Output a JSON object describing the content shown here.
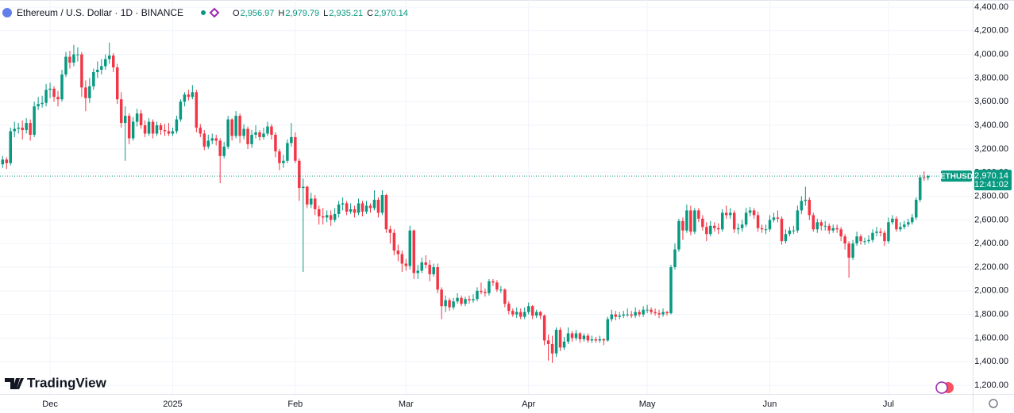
{
  "chart_data": {
    "type": "candlestick",
    "title": "Ethereum / U.S. Dollar · 1D · BINANCE",
    "legend_values": [
      {
        "key": "O",
        "value": 2956.97,
        "label": "2,956.97"
      },
      {
        "key": "H",
        "value": 2979.79,
        "label": "2,979.79"
      },
      {
        "key": "L",
        "value": 2935.21,
        "label": "2,935.21"
      },
      {
        "key": "C",
        "value": 2970.14,
        "label": "2,970.14"
      }
    ],
    "symbol_tag": "ETHUSD",
    "last_price": {
      "value": 2970.14,
      "label": "2,970.14"
    },
    "countdown": "12:41:02",
    "watermark": "TradingView",
    "up_color": "#089981",
    "down_color": "#f23645",
    "grid": true,
    "xlim": [
      0.34,
      246.3
    ],
    "ylim": [
      1127,
      4460
    ],
    "yticks": [
      {
        "value": 1200,
        "label": "1,200.00"
      },
      {
        "value": 1400,
        "label": "1,400.00"
      },
      {
        "value": 1600,
        "label": "1,600.00"
      },
      {
        "value": 1800,
        "label": "1,800.00"
      },
      {
        "value": 2000,
        "label": "2,000.00"
      },
      {
        "value": 2200,
        "label": "2,200.00"
      },
      {
        "value": 2400,
        "label": "2,400.00"
      },
      {
        "value": 2600,
        "label": "2,600.00"
      },
      {
        "value": 2800,
        "label": "2,800.00"
      },
      {
        "value": 3000,
        "label": "3,000.00"
      },
      {
        "value": 3200,
        "label": "3,200.00"
      },
      {
        "value": 3400,
        "label": "3,400.00"
      },
      {
        "value": 3600,
        "label": "3,600.00"
      },
      {
        "value": 3800,
        "label": "3,800.00"
      },
      {
        "value": 4000,
        "label": "4,000.00"
      },
      {
        "value": 4200,
        "label": "4,200.00"
      },
      {
        "value": 4400,
        "label": "4,400.00"
      }
    ],
    "categories": [
      null,
      null,
      null,
      null,
      null,
      null,
      null,
      null,
      null,
      null,
      null,
      null,
      null,
      "Dec",
      null,
      null,
      null,
      null,
      null,
      null,
      null,
      null,
      null,
      null,
      null,
      null,
      null,
      null,
      null,
      null,
      null,
      null,
      null,
      null,
      null,
      null,
      null,
      null,
      null,
      null,
      null,
      null,
      null,
      null,
      "2025",
      null,
      null,
      null,
      null,
      null,
      null,
      null,
      null,
      null,
      null,
      null,
      null,
      null,
      null,
      null,
      null,
      null,
      null,
      null,
      null,
      null,
      null,
      null,
      null,
      null,
      null,
      null,
      null,
      null,
      null,
      "Feb",
      null,
      null,
      null,
      null,
      null,
      null,
      null,
      null,
      null,
      null,
      null,
      null,
      null,
      null,
      null,
      null,
      null,
      null,
      null,
      null,
      null,
      null,
      null,
      null,
      null,
      null,
      null,
      "Mar",
      null,
      null,
      null,
      null,
      null,
      null,
      null,
      null,
      null,
      null,
      null,
      null,
      null,
      null,
      null,
      null,
      null,
      null,
      null,
      null,
      null,
      null,
      null,
      null,
      null,
      null,
      null,
      null,
      null,
      null,
      "Apr",
      null,
      null,
      null,
      null,
      null,
      null,
      null,
      null,
      null,
      null,
      null,
      null,
      null,
      null,
      null,
      null,
      null,
      null,
      null,
      null,
      null,
      null,
      null,
      null,
      null,
      null,
      null,
      null,
      null,
      "May",
      null,
      null,
      null,
      null,
      null,
      null,
      null,
      null,
      null,
      null,
      null,
      null,
      null,
      null,
      null,
      null,
      null,
      null,
      null,
      null,
      null,
      null,
      null,
      null,
      null,
      null,
      null,
      null,
      null,
      null,
      "Jun",
      null,
      null,
      null,
      null,
      null,
      null,
      null,
      null,
      null,
      null,
      null,
      null,
      null,
      null,
      null,
      null,
      null,
      null,
      null,
      null,
      null,
      null,
      null,
      null,
      null,
      null,
      null,
      null,
      null,
      "Jul",
      null,
      null,
      null,
      null,
      null,
      null,
      null,
      null,
      null,
      null
    ],
    "open": [
      3050,
      3070,
      3110,
      3080,
      3350,
      3370,
      3380,
      3360,
      3420,
      3320,
      3560,
      3580,
      3590,
      3700,
      3710,
      3640,
      3620,
      3830,
      3980,
      3930,
      4000,
      4000,
      3720,
      3630,
      3730,
      3850,
      3870,
      3900,
      3960,
      3990,
      3890,
      3620,
      3420,
      3480,
      3290,
      3430,
      3500,
      3400,
      3330,
      3430,
      3330,
      3400,
      3360,
      3350,
      3330,
      3350,
      3450,
      3600,
      3660,
      3640,
      3680,
      3380,
      3330,
      3220,
      3270,
      3290,
      3270,
      3140,
      3220,
      3450,
      3310,
      3480,
      3310,
      3370,
      3240,
      3320,
      3340,
      3300,
      3330,
      3390,
      3320,
      3180,
      3080,
      3100,
      3250,
      3300,
      3100,
      2870,
      2880,
      2730,
      2780,
      2690,
      2630,
      2620,
      2640,
      2600,
      2650,
      2730,
      2740,
      2670,
      2690,
      2660,
      2740,
      2670,
      2720,
      2700,
      2770,
      2660,
      2810,
      2520,
      2490,
      2340,
      2310,
      2230,
      2210,
      2510,
      2150,
      2170,
      2240,
      2220,
      2140,
      2200,
      2010,
      1870,
      1920,
      1860,
      1910,
      1940,
      1890,
      1930,
      1920,
      1930,
      2000,
      1990,
      1980,
      2080,
      2070,
      2010,
      2010,
      1890,
      1830,
      1800,
      1820,
      1780,
      1820,
      1870,
      1790,
      1820,
      1790,
      1580,
      1550,
      1470,
      1670,
      1520,
      1570,
      1640,
      1600,
      1640,
      1590,
      1620,
      1580,
      1590,
      1580,
      1590,
      1580,
      1760,
      1800,
      1780,
      1790,
      1800,
      1800,
      1790,
      1820,
      1800,
      1840,
      1840,
      1820,
      1810,
      1800,
      1820,
      1810,
      2200,
      2350,
      2590,
      2510,
      2680,
      2500,
      2680,
      2610,
      2540,
      2480,
      2550,
      2530,
      2520,
      2660,
      2640,
      2660,
      2520,
      2530,
      2560,
      2660,
      2680,
      2640,
      2530,
      2520,
      2520,
      2600,
      2620,
      2610,
      2420,
      2480,
      2510,
      2510,
      2680,
      2760,
      2770,
      2640,
      2520,
      2580,
      2550,
      2550,
      2510,
      2530,
      2520,
      2460,
      2400,
      2280,
      2400,
      2460,
      2420,
      2420,
      2430,
      2490,
      2500,
      2490,
      2420,
      2580,
      2610,
      2520,
      2540,
      2560,
      2580,
      2620,
      2770,
      2960,
      2956.97
    ],
    "high": [
      3110,
      3140,
      3130,
      3380,
      3430,
      3420,
      3440,
      3460,
      3450,
      3600,
      3640,
      3650,
      3750,
      3760,
      3730,
      3690,
      3870,
      4020,
      4030,
      4080,
      4060,
      4020,
      3780,
      3800,
      3880,
      3940,
      3960,
      4000,
      4100,
      4010,
      3920,
      3680,
      3560,
      3500,
      3470,
      3540,
      3530,
      3440,
      3460,
      3450,
      3430,
      3420,
      3410,
      3420,
      3380,
      3480,
      3620,
      3680,
      3700,
      3740,
      3700,
      3410,
      3360,
      3320,
      3330,
      3320,
      3290,
      3260,
      3480,
      3460,
      3520,
      3500,
      3410,
      3390,
      3360,
      3400,
      3360,
      3380,
      3430,
      3410,
      3340,
      3200,
      3150,
      3280,
      3420,
      3340,
      3120,
      2950,
      2890,
      2830,
      2810,
      2720,
      2700,
      2680,
      2680,
      2700,
      2760,
      2790,
      2760,
      2740,
      2720,
      2780,
      2760,
      2760,
      2740,
      2850,
      2790,
      2850,
      2820,
      2550,
      2520,
      2390,
      2340,
      2270,
      2550,
      2520,
      2220,
      2280,
      2300,
      2260,
      2230,
      2230,
      2030,
      1960,
      1940,
      1940,
      1980,
      1960,
      1950,
      1960,
      1970,
      2030,
      2070,
      2020,
      2100,
      2100,
      2090,
      2040,
      2020,
      1910,
      1850,
      1860,
      1850,
      1860,
      1900,
      1880,
      1840,
      1830,
      1800,
      1630,
      1620,
      1690,
      1690,
      1610,
      1690,
      1660,
      1670,
      1650,
      1640,
      1640,
      1620,
      1610,
      1620,
      1600,
      1780,
      1840,
      1830,
      1820,
      1830,
      1850,
      1830,
      1860,
      1840,
      1870,
      1880,
      1860,
      1850,
      1840,
      1850,
      1830,
      2220,
      2400,
      2610,
      2620,
      2730,
      2720,
      2700,
      2700,
      2640,
      2580,
      2590,
      2580,
      2570,
      2690,
      2720,
      2700,
      2680,
      2570,
      2600,
      2700,
      2710,
      2700,
      2670,
      2560,
      2560,
      2640,
      2660,
      2680,
      2630,
      2520,
      2540,
      2550,
      2720,
      2800,
      2880,
      2790,
      2660,
      2610,
      2600,
      2590,
      2570,
      2560,
      2560,
      2540,
      2480,
      2420,
      2430,
      2500,
      2480,
      2450,
      2470,
      2520,
      2540,
      2530,
      2510,
      2620,
      2640,
      2630,
      2580,
      2590,
      2610,
      2650,
      2790,
      2980,
      3010,
      2979.79
    ],
    "low": [
      3000,
      3040,
      3030,
      3060,
      3300,
      3330,
      3280,
      3330,
      3270,
      3300,
      3530,
      3550,
      3560,
      3630,
      3600,
      3560,
      3600,
      3810,
      3880,
      3900,
      3940,
      3640,
      3520,
      3590,
      3700,
      3800,
      3830,
      3870,
      3920,
      3850,
      3580,
      3380,
      3100,
      3240,
      3270,
      3390,
      3370,
      3300,
      3310,
      3290,
      3310,
      3320,
      3310,
      3310,
      3310,
      3330,
      3430,
      3560,
      3610,
      3620,
      3340,
      3300,
      3190,
      3200,
      3240,
      3230,
      2910,
      3120,
      3200,
      3270,
      3290,
      3250,
      3280,
      3200,
      3210,
      3290,
      3270,
      3280,
      3310,
      3280,
      3130,
      3020,
      3040,
      3080,
      3220,
      3080,
      2760,
      2160,
      2700,
      2700,
      2640,
      2560,
      2560,
      2580,
      2550,
      2580,
      2620,
      2680,
      2640,
      2650,
      2620,
      2640,
      2630,
      2650,
      2660,
      2680,
      2620,
      2640,
      2490,
      2400,
      2300,
      2250,
      2160,
      2170,
      2180,
      2100,
      2100,
      2150,
      2190,
      2080,
      2120,
      1980,
      1760,
      1820,
      1830,
      1840,
      1890,
      1870,
      1870,
      1890,
      1900,
      1910,
      1970,
      1950,
      1960,
      2040,
      1990,
      1980,
      1860,
      1800,
      1780,
      1770,
      1760,
      1760,
      1800,
      1760,
      1770,
      1760,
      1540,
      1410,
      1390,
      1440,
      1490,
      1500,
      1550,
      1570,
      1580,
      1560,
      1570,
      1560,
      1560,
      1560,
      1560,
      1540,
      1570,
      1740,
      1750,
      1760,
      1770,
      1780,
      1770,
      1770,
      1780,
      1780,
      1810,
      1800,
      1790,
      1770,
      1780,
      1790,
      1800,
      2180,
      2330,
      2430,
      2490,
      2470,
      2480,
      2580,
      2510,
      2420,
      2460,
      2500,
      2480,
      2500,
      2610,
      2610,
      2490,
      2480,
      2500,
      2540,
      2630,
      2610,
      2500,
      2490,
      2480,
      2500,
      2580,
      2580,
      2390,
      2400,
      2460,
      2480,
      2490,
      2650,
      2720,
      2600,
      2500,
      2490,
      2510,
      2510,
      2480,
      2490,
      2490,
      2420,
      2350,
      2110,
      2260,
      2380,
      2390,
      2390,
      2400,
      2410,
      2460,
      2460,
      2380,
      2400,
      2560,
      2500,
      2500,
      2520,
      2540,
      2560,
      2600,
      2750,
      2930,
      2935.21
    ],
    "close": [
      3070,
      3110,
      3080,
      3350,
      3370,
      3380,
      3360,
      3420,
      3320,
      3560,
      3580,
      3590,
      3700,
      3710,
      3640,
      3620,
      3830,
      3980,
      3930,
      4000,
      4000,
      3720,
      3630,
      3730,
      3850,
      3870,
      3900,
      3960,
      3990,
      3890,
      3620,
      3420,
      3480,
      3290,
      3430,
      3500,
      3400,
      3330,
      3430,
      3330,
      3400,
      3360,
      3350,
      3330,
      3350,
      3450,
      3600,
      3660,
      3640,
      3680,
      3380,
      3330,
      3220,
      3270,
      3290,
      3270,
      3140,
      3220,
      3450,
      3310,
      3480,
      3310,
      3370,
      3240,
      3320,
      3340,
      3300,
      3330,
      3390,
      3320,
      3180,
      3080,
      3100,
      3250,
      3300,
      3100,
      2870,
      2880,
      2730,
      2780,
      2690,
      2630,
      2620,
      2640,
      2600,
      2650,
      2730,
      2740,
      2670,
      2690,
      2660,
      2740,
      2670,
      2720,
      2700,
      2770,
      2660,
      2810,
      2520,
      2490,
      2340,
      2310,
      2230,
      2210,
      2510,
      2150,
      2170,
      2240,
      2220,
      2140,
      2200,
      2010,
      1870,
      1920,
      1860,
      1910,
      1940,
      1890,
      1930,
      1920,
      1930,
      2000,
      1990,
      1980,
      2080,
      2070,
      2010,
      2010,
      1890,
      1830,
      1800,
      1820,
      1780,
      1820,
      1870,
      1790,
      1820,
      1790,
      1580,
      1550,
      1470,
      1670,
      1520,
      1570,
      1640,
      1600,
      1640,
      1590,
      1620,
      1580,
      1590,
      1580,
      1590,
      1580,
      1760,
      1800,
      1780,
      1790,
      1800,
      1800,
      1790,
      1820,
      1800,
      1840,
      1840,
      1820,
      1810,
      1800,
      1820,
      1810,
      2200,
      2350,
      2590,
      2510,
      2680,
      2500,
      2680,
      2610,
      2540,
      2480,
      2550,
      2530,
      2520,
      2660,
      2640,
      2660,
      2520,
      2530,
      2560,
      2660,
      2680,
      2640,
      2530,
      2520,
      2520,
      2600,
      2620,
      2610,
      2420,
      2480,
      2510,
      2510,
      2680,
      2760,
      2770,
      2640,
      2520,
      2580,
      2550,
      2550,
      2510,
      2530,
      2520,
      2460,
      2400,
      2280,
      2400,
      2460,
      2420,
      2420,
      2430,
      2490,
      2500,
      2490,
      2420,
      2580,
      2610,
      2520,
      2540,
      2560,
      2580,
      2620,
      2770,
      2960,
      2956.97,
      2970.14
    ]
  }
}
